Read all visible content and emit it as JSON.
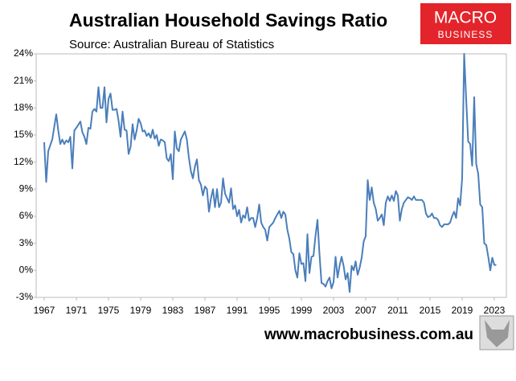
{
  "chart_data": {
    "type": "line",
    "title": "Australian Household Savings Ratio",
    "subtitle": "Source: Australian Bureau of Statistics",
    "logo": {
      "line1": "MACRO",
      "line2": "BUSINESS"
    },
    "footer": "www.macrobusiness.com.au",
    "color": "#4a7ebb",
    "xlim": [
      1966,
      2024.5
    ],
    "xticks": [
      1967,
      1971,
      1975,
      1979,
      1983,
      1987,
      1991,
      1995,
      1999,
      2003,
      2007,
      2011,
      2015,
      2019,
      2023
    ],
    "ylim": [
      -3,
      24
    ],
    "yticks": [
      {
        "value": -3,
        "label": "-3%"
      },
      {
        "value": 0,
        "label": "0%"
      },
      {
        "value": 3,
        "label": "3%"
      },
      {
        "value": 6,
        "label": "6%"
      },
      {
        "value": 9,
        "label": "9%"
      },
      {
        "value": 12,
        "label": "12%"
      },
      {
        "value": 15,
        "label": "15%"
      },
      {
        "value": 18,
        "label": "18%"
      },
      {
        "value": 21,
        "label": "21%"
      },
      {
        "value": 24,
        "label": "24%"
      }
    ],
    "x": [
      1967,
      1967.25,
      1967.5,
      1968,
      1968.5,
      1968.75,
      1969,
      1969.25,
      1969.5,
      1969.75,
      1970,
      1970.25,
      1970.5,
      1970.75,
      1971,
      1971.5,
      1971.75,
      1972,
      1972.25,
      1972.5,
      1972.75,
      1973,
      1973.25,
      1973.5,
      1973.75,
      1974,
      1974.25,
      1974.5,
      1974.75,
      1975,
      1975.25,
      1975.5,
      1975.75,
      1976,
      1976.25,
      1976.5,
      1976.75,
      1977,
      1977.25,
      1977.5,
      1977.75,
      1978,
      1978.25,
      1978.5,
      1978.75,
      1979,
      1979.25,
      1979.5,
      1979.75,
      1980,
      1980.25,
      1980.5,
      1980.75,
      1981,
      1981.25,
      1981.5,
      1981.75,
      1982,
      1982.25,
      1982.5,
      1982.75,
      1983,
      1983.25,
      1983.5,
      1983.75,
      1984,
      1984.5,
      1984.75,
      1985,
      1985.25,
      1985.5,
      1985.75,
      1986,
      1986.25,
      1986.5,
      1986.75,
      1987,
      1987.25,
      1987.5,
      1987.75,
      1988,
      1988.25,
      1988.5,
      1988.75,
      1989,
      1989.25,
      1989.5,
      1989.75,
      1990,
      1990.25,
      1990.5,
      1990.75,
      1991,
      1991.25,
      1991.5,
      1991.75,
      1992,
      1992.25,
      1992.5,
      1992.75,
      1993,
      1993.25,
      1993.5,
      1993.75,
      1994,
      1994.25,
      1994.5,
      1994.75,
      1995,
      1995.5,
      1995.75,
      1996,
      1996.25,
      1996.5,
      1996.75,
      1997,
      1997.25,
      1997.5,
      1997.75,
      1998,
      1998.25,
      1998.5,
      1998.75,
      1999,
      1999.25,
      1999.5,
      1999.75,
      2000,
      2000.25,
      2000.5,
      2000.75,
      2001,
      2001.25,
      2001.5,
      2001.75,
      2002,
      2002.25,
      2002.5,
      2002.75,
      2003,
      2003.25,
      2003.5,
      2003.75,
      2004,
      2004.25,
      2004.5,
      2004.75,
      2005,
      2005.25,
      2005.5,
      2005.75,
      2006,
      2006.25,
      2006.5,
      2006.75,
      2007,
      2007.25,
      2007.5,
      2007.75,
      2008,
      2008.25,
      2008.5,
      2008.75,
      2009,
      2009.25,
      2009.5,
      2009.75,
      2010,
      2010.25,
      2010.5,
      2010.75,
      2011,
      2011.25,
      2011.5,
      2011.75,
      2012,
      2012.25,
      2012.5,
      2012.75,
      2013,
      2013.25,
      2013.5,
      2013.75,
      2014,
      2014.25,
      2014.5,
      2014.75,
      2015,
      2015.25,
      2015.5,
      2015.75,
      2016,
      2016.25,
      2016.5,
      2016.75,
      2017,
      2017.25,
      2017.5,
      2017.75,
      2018,
      2018.25,
      2018.5,
      2018.75,
      2019,
      2019.25,
      2019.5,
      2019.75,
      2020,
      2020.25,
      2020.5,
      2020.75,
      2021,
      2021.25,
      2021.5,
      2021.75,
      2022,
      2022.25,
      2022.5,
      2022.75,
      2023,
      2023.25
    ],
    "values": [
      14.2,
      9.8,
      13.2,
      14.5,
      17.3,
      15.5,
      14,
      14.5,
      14,
      14.4,
      14.2,
      14.8,
      11.3,
      15.5,
      15.8,
      16.5,
      15.3,
      14.8,
      14,
      15.8,
      15.7,
      17.6,
      17.9,
      17.6,
      20.3,
      18,
      18,
      20.3,
      16.4,
      19,
      19.6,
      17.8,
      17.8,
      17.9,
      16.6,
      14.8,
      17.6,
      15.6,
      15.5,
      12.9,
      13.7,
      16.2,
      14.5,
      15.5,
      16.8,
      16.3,
      15.4,
      15.5,
      14.9,
      15.2,
      14.7,
      15.6,
      14.6,
      15,
      13.8,
      14.5,
      14.4,
      14.2,
      12.4,
      12.1,
      12.9,
      10.1,
      15.4,
      13.5,
      13.2,
      14.5,
      15.4,
      14.5,
      12.5,
      11,
      10.2,
      11.5,
      12.3,
      10,
      9.5,
      8.3,
      9.3,
      9,
      6.5,
      8,
      9,
      7,
      9,
      7,
      7.5,
      10.2,
      8.5,
      8,
      7.5,
      9.1,
      6.8,
      7.2,
      6,
      6.7,
      5.3,
      6.1,
      5.8,
      7,
      5.5,
      5.8,
      5.8,
      4.8,
      5.8,
      7.3,
      5.3,
      4.8,
      4.5,
      3.3,
      4.8,
      5.3,
      5.8,
      6.2,
      6.6,
      5.8,
      6.5,
      6.2,
      4.5,
      3.5,
      2,
      1.8,
      0,
      -0.8,
      1.9,
      0.7,
      0.8,
      -1.2,
      4,
      -0.3,
      1.5,
      1.6,
      3.8,
      5.6,
      1.8,
      -1.4,
      -1.5,
      -1.8,
      -1.2,
      -0.8,
      -2,
      -1.3,
      1.5,
      -0.8,
      0.5,
      1.5,
      0.5,
      -1,
      -0.3,
      -2.4,
      0.5,
      0,
      1,
      -0.5,
      0.3,
      1.4,
      3.2,
      3.8,
      10,
      7.8,
      9.2,
      7.5,
      6.8,
      5.5,
      5.8,
      6.2,
      5,
      7.5,
      8.2,
      7.7,
      8.3,
      7.7,
      8.8,
      8.3,
      5.5,
      6.8,
      7.5,
      7.8,
      8.1,
      8,
      7.8,
      8.2,
      7.8,
      7.8,
      7.8,
      7.8,
      7.5,
      6.3,
      5.9,
      6,
      6.3,
      5.8,
      5.8,
      5.6,
      5,
      4.8,
      5.1,
      5.1,
      5.1,
      5.3,
      6,
      6.5,
      5.8,
      8,
      7.2,
      10.2,
      24,
      19,
      14.3,
      14,
      11.6,
      19.2,
      11.8,
      10.7,
      7.3,
      7,
      3,
      2.8,
      1.5,
      0,
      1.4,
      0.6,
      0.6
    ]
  }
}
